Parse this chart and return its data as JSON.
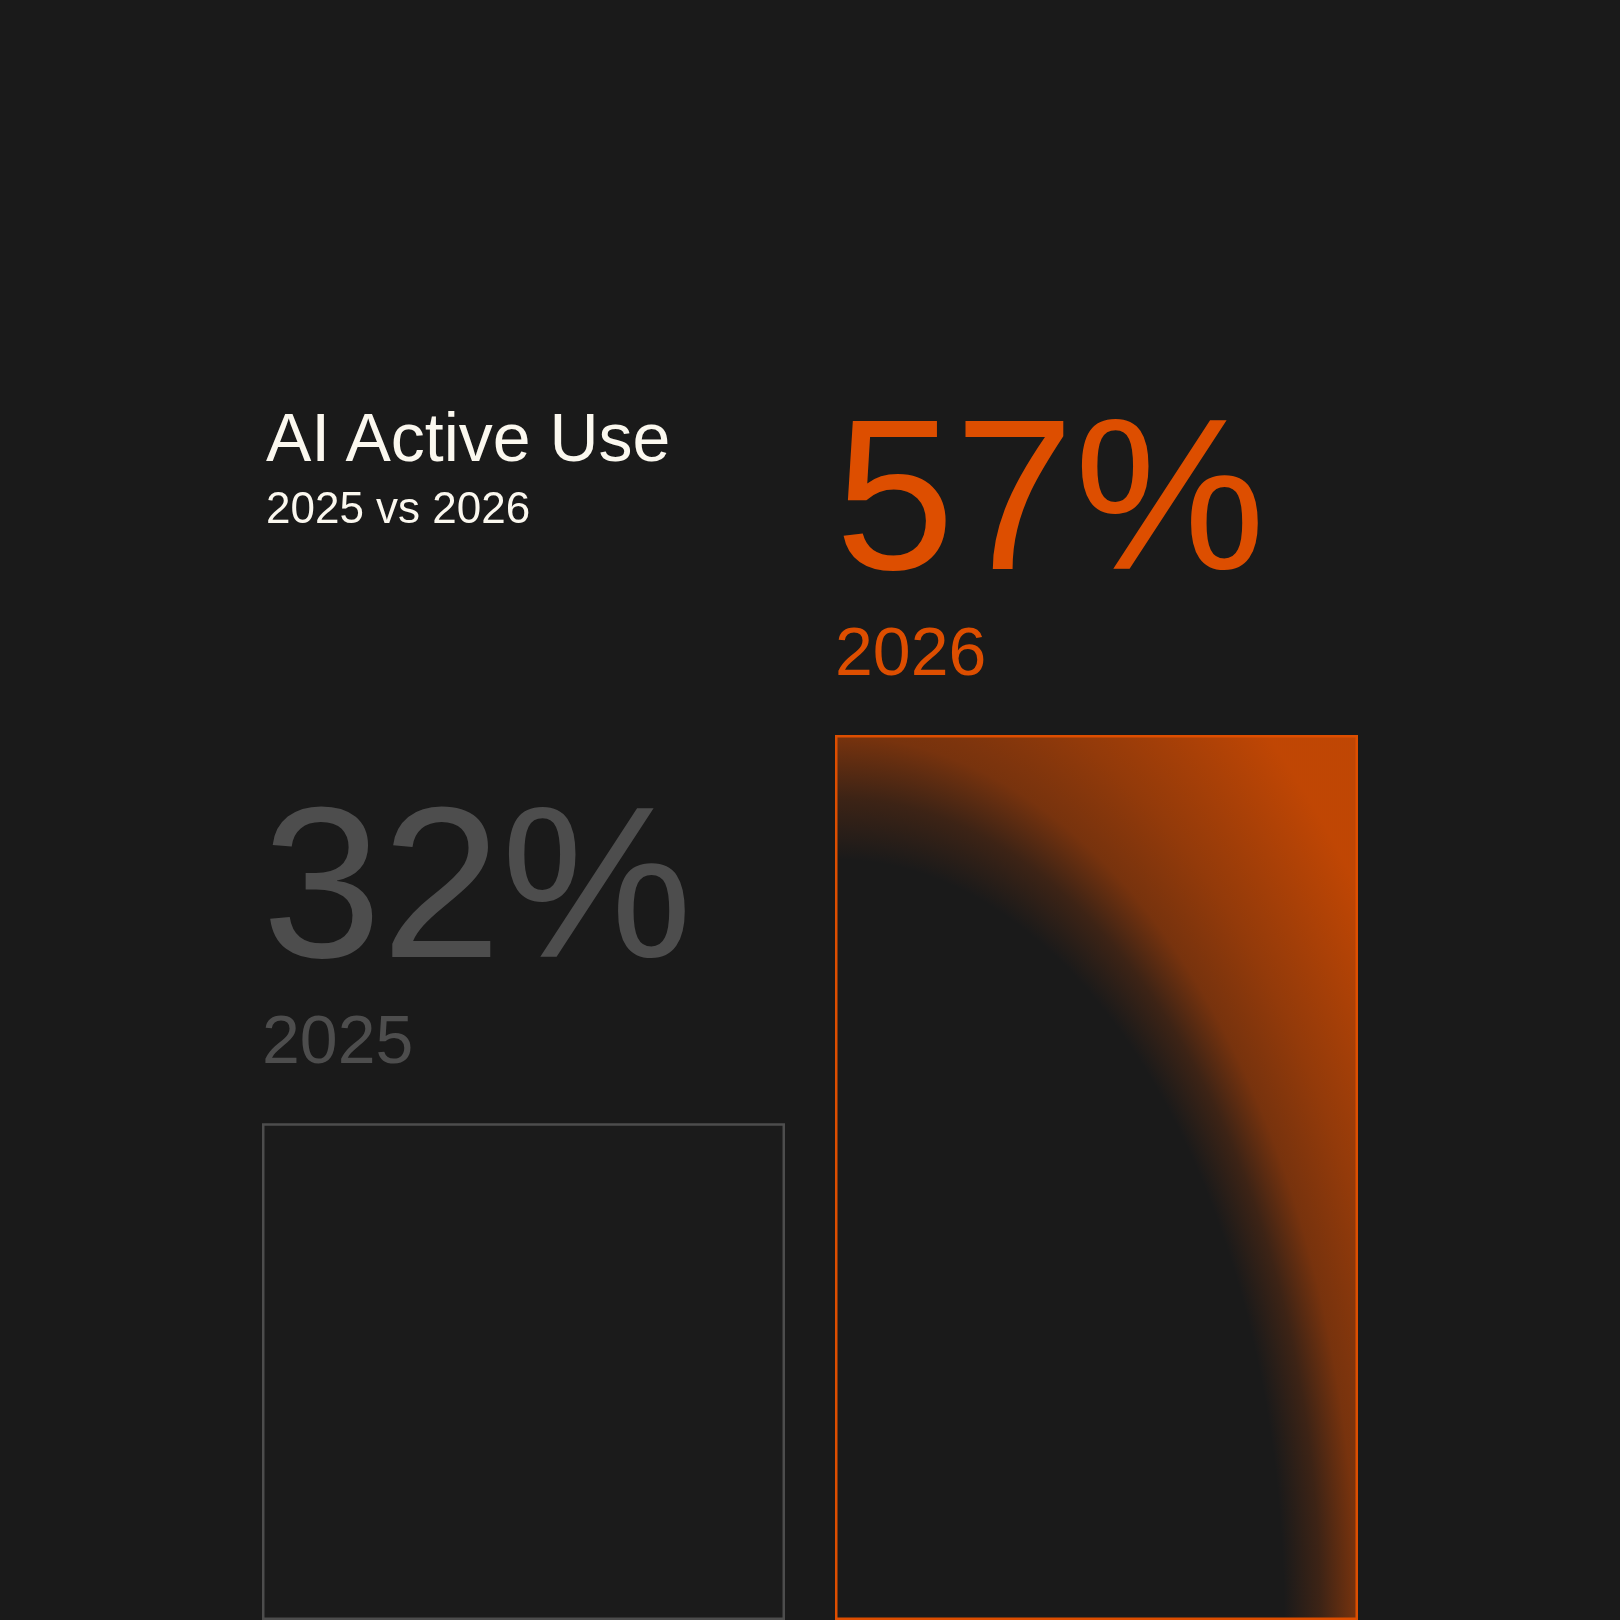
{
  "chart_data": {
    "type": "bar",
    "title": "AI Active Use",
    "subtitle": "2025 vs 2026",
    "categories": [
      "2025",
      "2026"
    ],
    "values": [
      32,
      57
    ],
    "value_labels": [
      "32%",
      "57%"
    ],
    "colors": [
      "#4d4d4d",
      "#dd4e00"
    ]
  }
}
